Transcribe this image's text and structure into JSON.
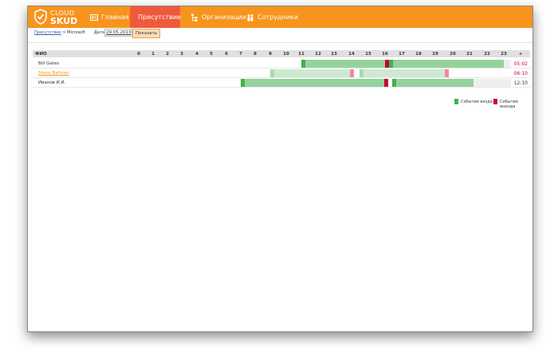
{
  "brand": {
    "line1": "CLOUD",
    "line2": "SKUD"
  },
  "nav": [
    {
      "label": "Главная",
      "icon": "id-card-icon",
      "active": false
    },
    {
      "label": "Присутствие",
      "icon": "person-doc-icon",
      "active": true
    },
    {
      "label": "Организации",
      "icon": "org-tree-icon",
      "active": false
    },
    {
      "label": "Сотрудники",
      "icon": "people-icon",
      "active": false
    }
  ],
  "breadcrumb": {
    "link": "Присутствие",
    "separator": " > ",
    "current": "Microsoft"
  },
  "filter": {
    "date_label": "Дата:",
    "date_value": "29.05.2013",
    "show_button": "Показать"
  },
  "table": {
    "name_header": "ФИО",
    "hours": [
      "0",
      "1",
      "2",
      "3",
      "4",
      "5",
      "6",
      "7",
      "8",
      "9",
      "10",
      "11",
      "12",
      "13",
      "14",
      "15",
      "16",
      "17",
      "18",
      "19",
      "20",
      "21",
      "22",
      "23"
    ],
    "total_header": "+",
    "rows": [
      {
        "name": "Bill Gates",
        "total": "05:02",
        "total_color": "#d0003a",
        "is_link": false
      },
      {
        "name": "Steve Ballmer",
        "total": "06:10",
        "total_color": "#d0003a",
        "is_link": true
      },
      {
        "name": "Иванов И.И.",
        "total": "12:10",
        "total_color": "#333333",
        "is_link": false
      }
    ]
  },
  "legend": {
    "entry": "События входа",
    "exit": "События выхода"
  },
  "colors": {
    "accent": "#f7941d",
    "active_tab": "#ef5a3a",
    "entry": "#3cb44b",
    "exit": "#c8003c"
  }
}
